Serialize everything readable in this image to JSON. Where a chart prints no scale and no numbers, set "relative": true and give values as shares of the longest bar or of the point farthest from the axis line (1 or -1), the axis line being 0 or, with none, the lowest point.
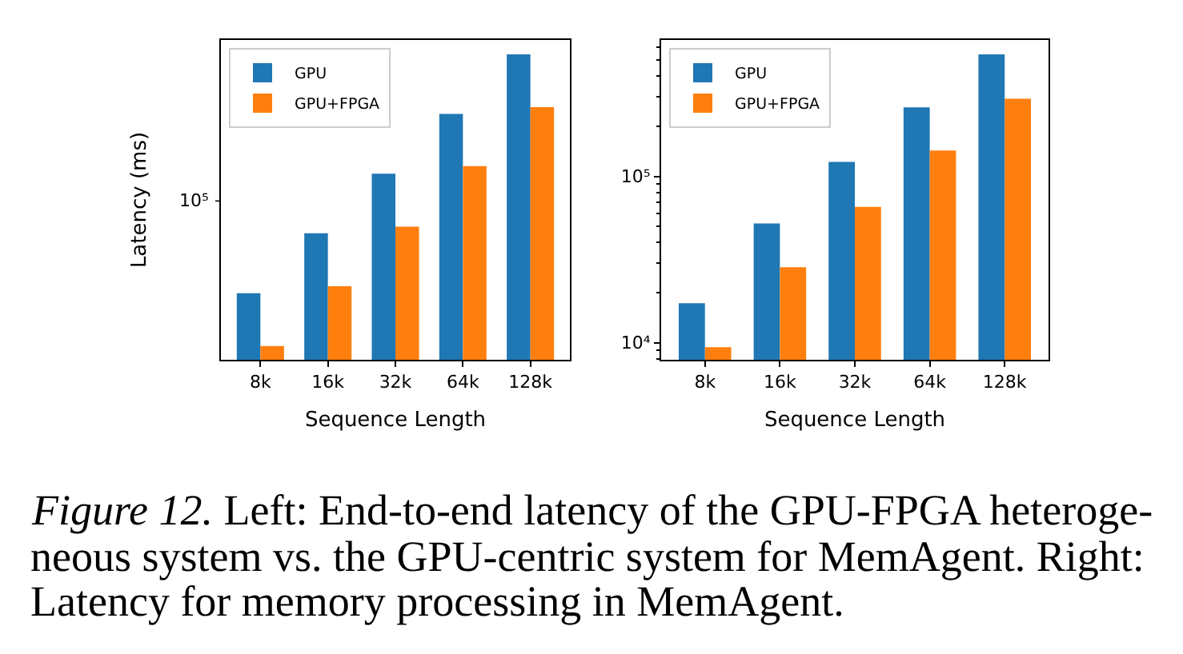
{
  "chart_data": [
    {
      "type": "bar",
      "relative": true,
      "categories": [
        "8k",
        "16k",
        "32k",
        "64k",
        "128k"
      ],
      "series": [
        {
          "name": "GPU",
          "color": "#1f77b4",
          "values": [
            0.218,
            0.414,
            0.609,
            0.805,
            1.0
          ]
        },
        {
          "name": "GPU+FPGA",
          "color": "#ff7f0e",
          "values": [
            0.045,
            0.241,
            0.436,
            0.634,
            0.827
          ]
        }
      ],
      "xlabel": "Sequence Length",
      "ylabel": "Latency (ms)",
      "legend": "top left",
      "annotations": [
        "10⁵",
        "Figure 12.",
        "Left: End-to-end latency of the GPU-FPGA heteroge-\nneous system vs. the GPU-centric system for MemAgent. Right:\nLatency for memory processing in MemAgent."
      ]
    },
    {
      "type": "bar",
      "categories": [
        "8k",
        "16k",
        "32k",
        "64k",
        "128k"
      ],
      "series": [
        {
          "name": "GPU",
          "color": "#1f77b4",
          "values": [
            17300,
            52100,
            122000,
            260000,
            541000
          ]
        },
        {
          "name": "GPU+FPGA",
          "color": "#ff7f0e",
          "values": [
            9400,
            28400,
            65600,
            143000,
            293000
          ]
        }
      ],
      "xlabel": "Sequence Length",
      "log": "y",
      "ylim": [
        7900,
        660000
      ],
      "yticks": [
        {
          "value": 8000,
          "label": null
        },
        {
          "value": 9000,
          "label": null
        },
        {
          "value": 10000,
          "label": "10⁴"
        },
        {
          "value": 20000,
          "label": null
        },
        {
          "value": 30000,
          "label": null
        },
        {
          "value": 40000,
          "label": null
        },
        {
          "value": 50000,
          "label": null
        },
        {
          "value": 60000,
          "label": null
        },
        {
          "value": 70000,
          "label": null
        },
        {
          "value": 80000,
          "label": null
        },
        {
          "value": 90000,
          "label": null
        },
        {
          "value": 100000,
          "label": "10⁵"
        },
        {
          "value": 200000,
          "label": null
        },
        {
          "value": 300000,
          "label": null
        },
        {
          "value": 400000,
          "label": null
        },
        {
          "value": 500000,
          "label": null
        },
        {
          "value": 600000,
          "label": null
        }
      ],
      "legend": "top left"
    }
  ]
}
